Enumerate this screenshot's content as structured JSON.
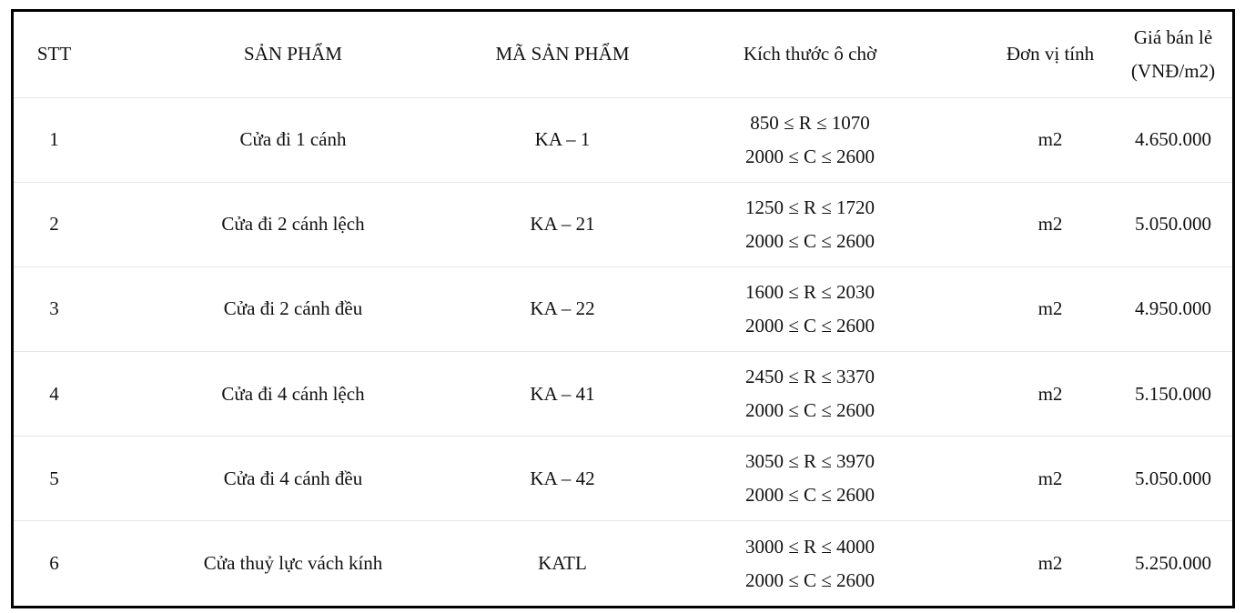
{
  "table": {
    "headers": {
      "stt": "STT",
      "product": "SẢN PHẨM",
      "code": "MÃ SẢN PHẨM",
      "size": "Kích thước ô chờ",
      "unit": "Đơn vị tính",
      "price_line1": "Giá bán lẻ",
      "price_line2": "(VNĐ/m2)"
    },
    "rows": [
      {
        "stt": "1",
        "product": "Cửa đi 1 cánh",
        "code": "KA – 1",
        "size_r": "850 ≤ R ≤ 1070",
        "size_c": "2000 ≤ C ≤ 2600",
        "unit": "m2",
        "price": "4.650.000"
      },
      {
        "stt": "2",
        "product": "Cửa đi 2 cánh lệch",
        "code": "KA – 21",
        "size_r": "1250 ≤ R ≤ 1720",
        "size_c": "2000 ≤ C ≤ 2600",
        "unit": "m2",
        "price": "5.050.000"
      },
      {
        "stt": "3",
        "product": "Cửa đi 2 cánh đều",
        "code": "KA – 22",
        "size_r": "1600 ≤ R ≤ 2030",
        "size_c": "2000 ≤ C ≤ 2600",
        "unit": "m2",
        "price": "4.950.000"
      },
      {
        "stt": "4",
        "product": "Cửa đi 4 cánh lệch",
        "code": "KA – 41",
        "size_r": "2450 ≤ R ≤ 3370",
        "size_c": "2000 ≤ C ≤ 2600",
        "unit": "m2",
        "price": "5.150.000"
      },
      {
        "stt": "5",
        "product": "Cửa đi 4 cánh đều",
        "code": "KA – 42",
        "size_r": "3050 ≤ R ≤ 3970",
        "size_c": "2000 ≤ C ≤ 2600",
        "unit": "m2",
        "price": "5.050.000"
      },
      {
        "stt": "6",
        "product": "Cửa thuỷ lực vách kính",
        "code": "KATL",
        "size_r": "3000 ≤ R ≤ 4000",
        "size_c": "2000 ≤ C ≤ 2600",
        "unit": "m2",
        "price": "5.250.000"
      }
    ]
  }
}
